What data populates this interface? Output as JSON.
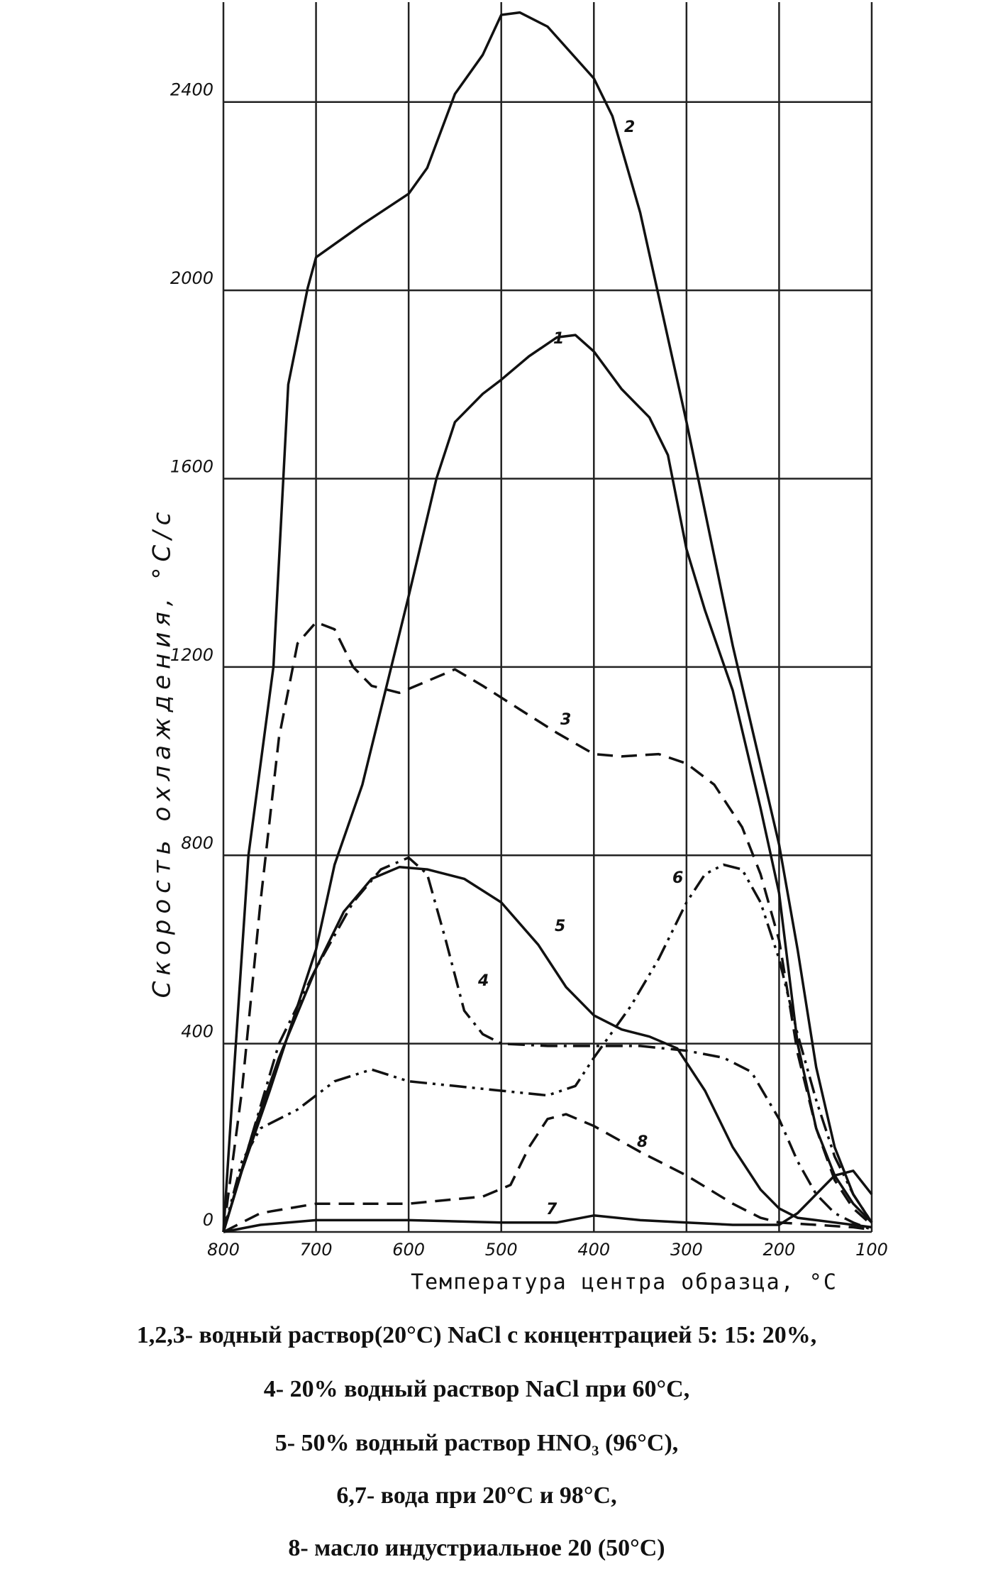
{
  "chart_data": {
    "type": "line",
    "x_label": "Температура центра образца, °С",
    "y_label": "Скорость охлаждения, °С/с",
    "xlim": [
      800,
      100
    ],
    "ylim": [
      0,
      2600
    ],
    "xticks": [
      800,
      700,
      600,
      500,
      400,
      300,
      200,
      100
    ],
    "yticks": [
      0,
      400,
      800,
      1200,
      1600,
      2000,
      2400
    ],
    "grid": true,
    "color": "#111111",
    "series": [
      {
        "name": "1",
        "style": "solid",
        "x": [
          800,
          780,
          750,
          720,
          700,
          680,
          650,
          600,
          570,
          550,
          520,
          500,
          470,
          440,
          420,
          400,
          370,
          340,
          320,
          300,
          280,
          250,
          220,
          200,
          180,
          160,
          140,
          120,
          100
        ],
        "values": [
          0,
          130,
          300,
          480,
          600,
          780,
          950,
          1350,
          1600,
          1720,
          1780,
          1810,
          1860,
          1900,
          1905,
          1870,
          1790,
          1730,
          1650,
          1450,
          1320,
          1150,
          900,
          720,
          400,
          220,
          120,
          60,
          20
        ]
      },
      {
        "name": "2",
        "style": "solid",
        "x": [
          800,
          790,
          773,
          746,
          730,
          709,
          700,
          650,
          600,
          580,
          550,
          520,
          500,
          480,
          450,
          400,
          380,
          350,
          300,
          250,
          200,
          180,
          160,
          140,
          120,
          100
        ],
        "values": [
          0,
          300,
          800,
          1200,
          1800,
          2005,
          2070,
          2140,
          2205,
          2260,
          2417,
          2500,
          2585,
          2590,
          2560,
          2450,
          2370,
          2165,
          1720,
          1245,
          823,
          600,
          350,
          180,
          80,
          20
        ]
      },
      {
        "name": "3",
        "style": "dashed",
        "x": [
          800,
          780,
          760,
          740,
          720,
          700,
          680,
          660,
          640,
          610,
          580,
          550,
          520,
          480,
          440,
          400,
          370,
          330,
          300,
          270,
          240,
          220,
          200,
          180,
          160,
          140,
          120,
          100
        ],
        "values": [
          0,
          300,
          700,
          1050,
          1250,
          1295,
          1280,
          1200,
          1160,
          1145,
          1170,
          1195,
          1160,
          1110,
          1060,
          1015,
          1010,
          1015,
          995,
          950,
          860,
          760,
          620,
          380,
          220,
          110,
          50,
          15
        ]
      },
      {
        "name": "4",
        "style": "dash-dot",
        "x": [
          800,
          770,
          740,
          700,
          660,
          630,
          600,
          580,
          560,
          540,
          520,
          500,
          450,
          400,
          350,
          300,
          260,
          230,
          200,
          180,
          160,
          140,
          120,
          100
        ],
        "values": [
          0,
          200,
          400,
          560,
          700,
          770,
          795,
          760,
          620,
          470,
          420,
          400,
          395,
          395,
          395,
          385,
          370,
          340,
          240,
          150,
          80,
          40,
          20,
          5
        ]
      },
      {
        "name": "5",
        "style": "solid",
        "x": [
          800,
          770,
          740,
          700,
          670,
          640,
          610,
          580,
          540,
          500,
          460,
          430,
          400,
          370,
          340,
          310,
          280,
          250,
          220,
          200,
          180,
          160,
          140,
          120,
          100
        ],
        "values": [
          0,
          200,
          370,
          560,
          680,
          750,
          775,
          770,
          750,
          700,
          610,
          520,
          460,
          430,
          415,
          390,
          300,
          180,
          90,
          50,
          30,
          25,
          20,
          15,
          10
        ]
      },
      {
        "name": "6",
        "style": "dash-dot-dot",
        "x": [
          800,
          780,
          760,
          720,
          680,
          640,
          600,
          550,
          500,
          450,
          420,
          400,
          360,
          330,
          300,
          280,
          260,
          240,
          220,
          200,
          180,
          160,
          140,
          120,
          100
        ],
        "values": [
          0,
          150,
          220,
          260,
          320,
          345,
          320,
          310,
          300,
          290,
          310,
          370,
          480,
          580,
          700,
          760,
          780,
          770,
          700,
          580,
          420,
          280,
          160,
          80,
          20
        ]
      },
      {
        "name": "7",
        "style": "solid",
        "x": [
          800,
          760,
          700,
          600,
          500,
          440,
          400,
          350,
          300,
          250,
          200,
          180,
          160,
          140,
          120,
          100
        ],
        "values": [
          0,
          15,
          25,
          25,
          20,
          20,
          35,
          25,
          20,
          15,
          15,
          40,
          80,
          120,
          130,
          80
        ]
      },
      {
        "name": "8",
        "style": "dashed",
        "x": [
          800,
          760,
          700,
          600,
          520,
          490,
          470,
          450,
          430,
          400,
          350,
          300,
          250,
          220,
          200,
          160,
          120,
          100
        ],
        "values": [
          0,
          40,
          60,
          60,
          75,
          100,
          180,
          240,
          250,
          225,
          170,
          120,
          60,
          30,
          20,
          15,
          10,
          5
        ]
      }
    ],
    "notes": [
      "1,2,3- водный раствор(20°С) NaCl с концентрацией 5: 15: 20%,",
      "4- 20% водный раствор NaCl при 60°С,",
      "5- 50% водный раствор HNO₃ (96°С),",
      "6,7- вода при 20°С и 98°С,",
      "8- масло индустриальное 20 (50°С)"
    ]
  }
}
